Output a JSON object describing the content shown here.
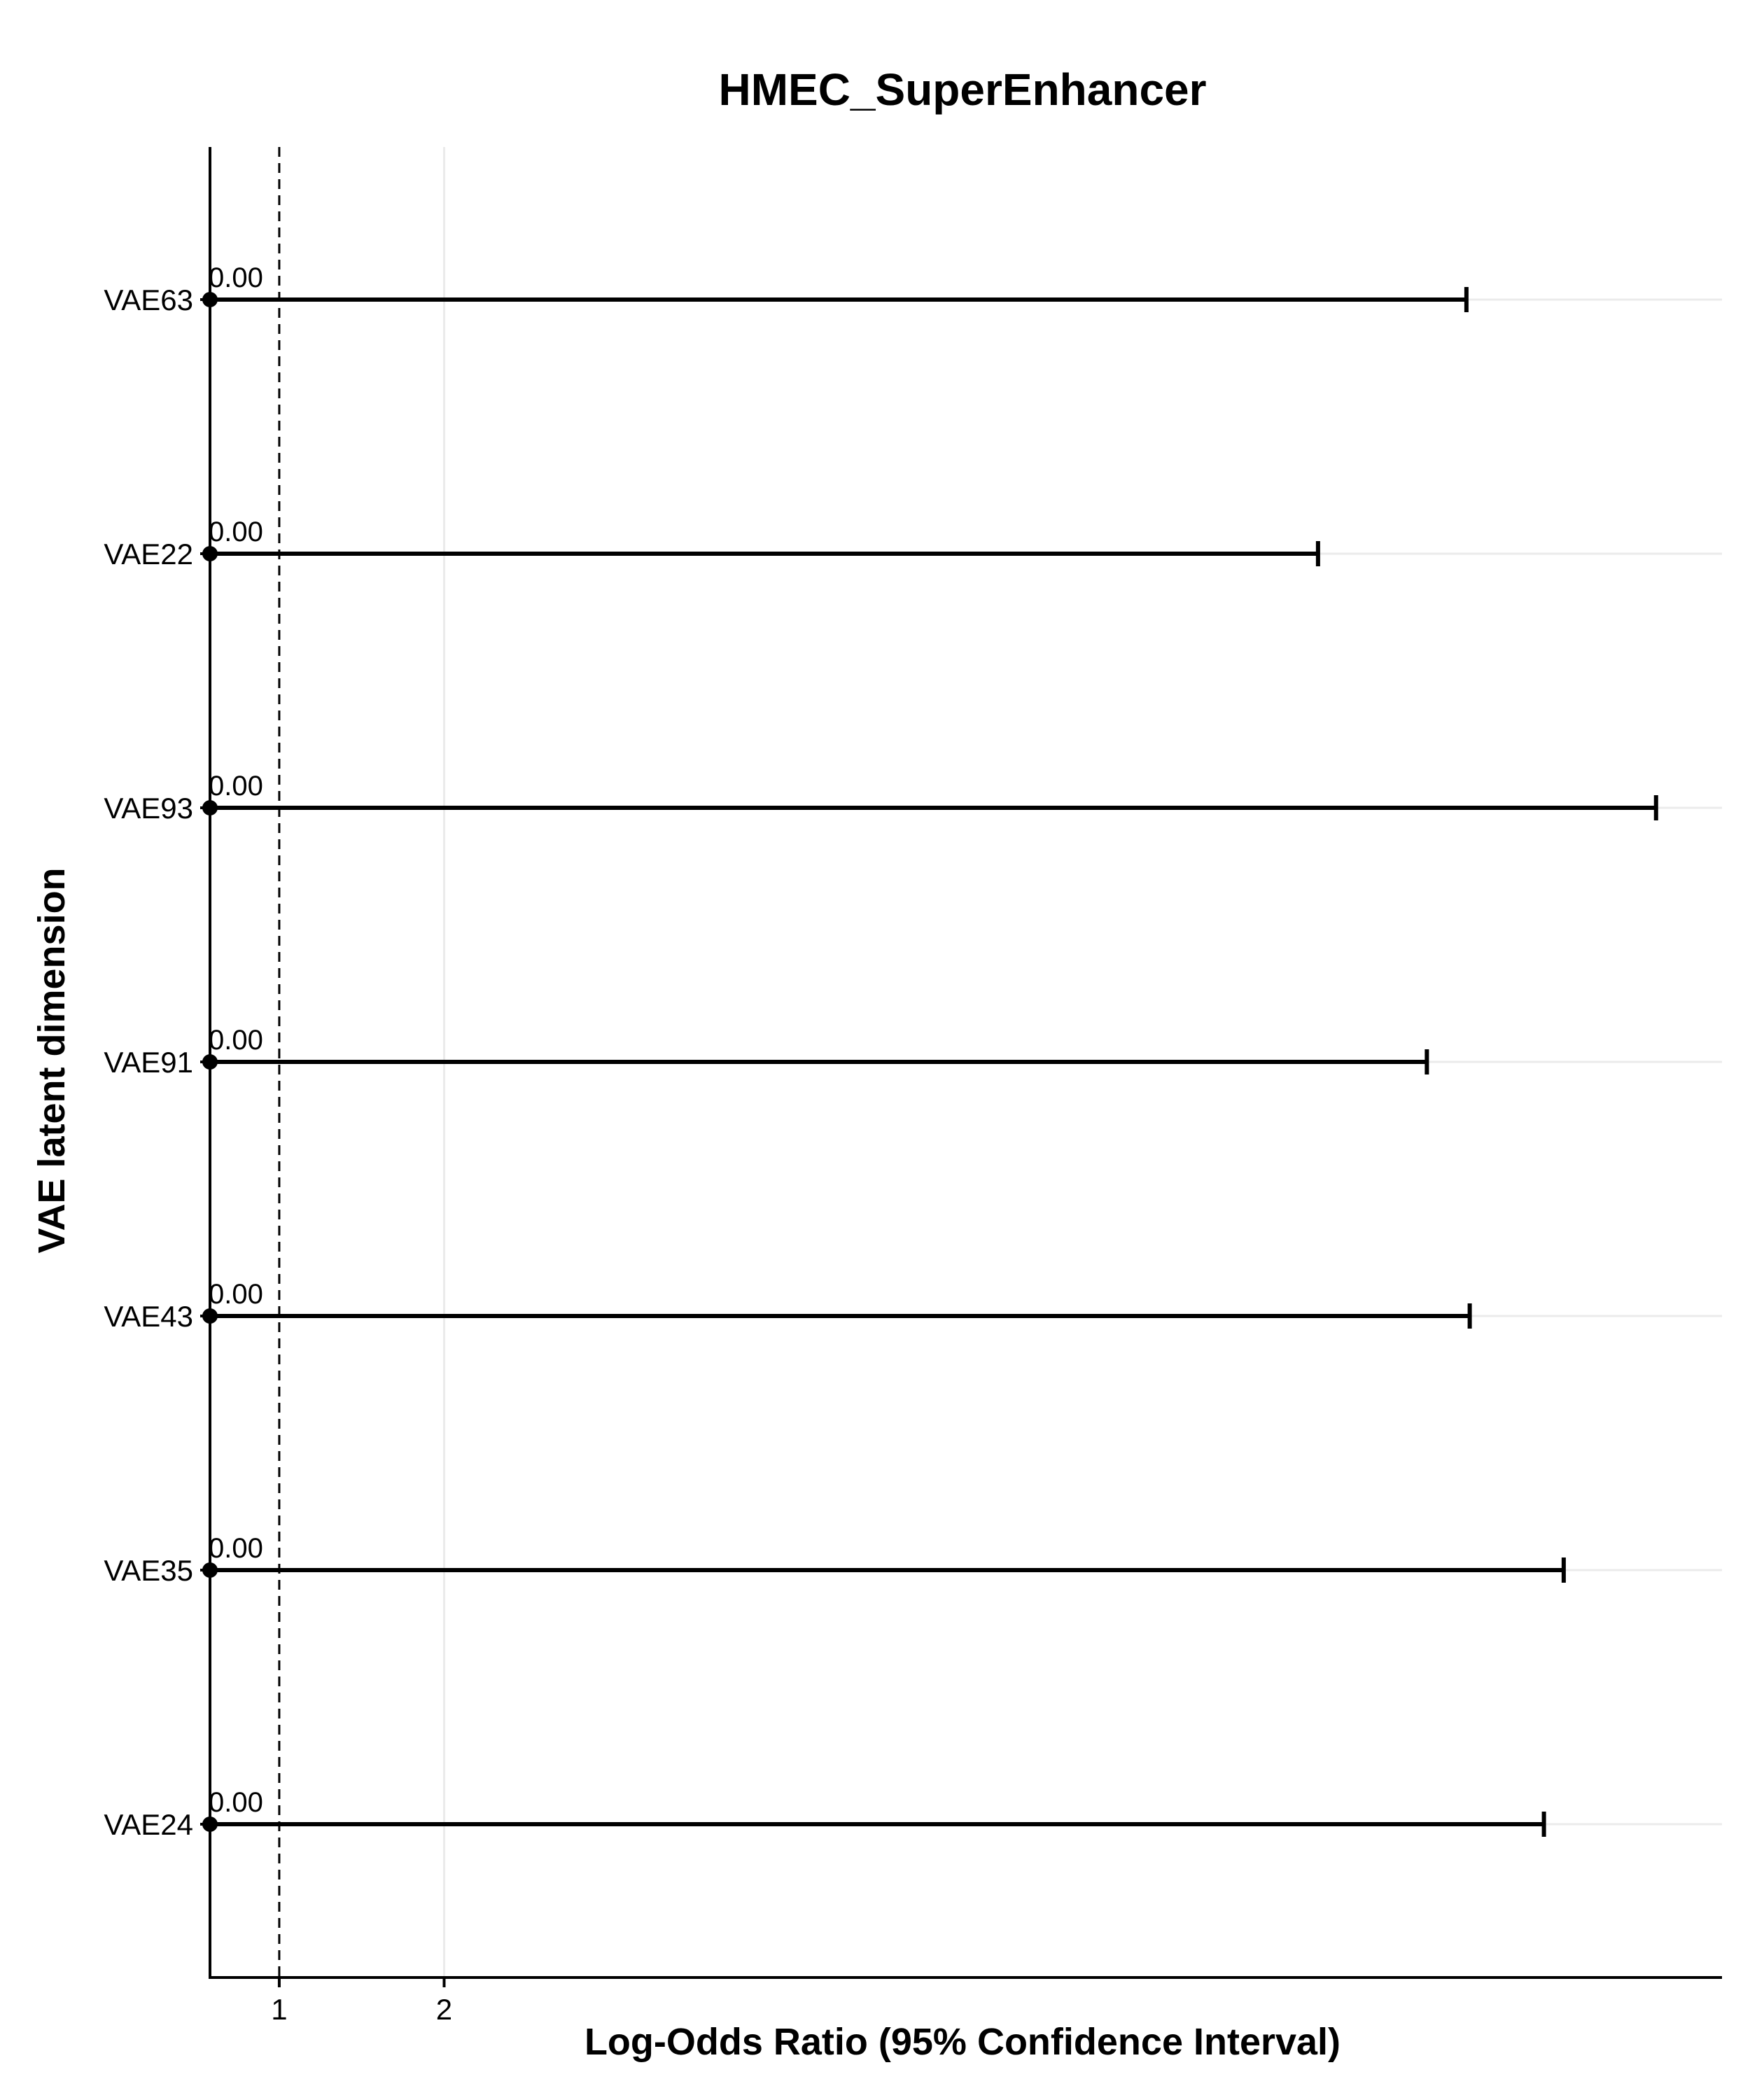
{
  "chart_data": {
    "type": "forest",
    "title": "HMEC_SuperEnhancer",
    "xlabel": "Log-Odds Ratio (95% Confidence Interval)",
    "ylabel": "VAE latent dimension",
    "x_ticks": [
      1,
      2
    ],
    "xlim": [
      0.58,
      9.75
    ],
    "reference_line": 1,
    "grid": "major",
    "categories": [
      "VAE63",
      "VAE22",
      "VAE93",
      "VAE91",
      "VAE43",
      "VAE35",
      "VAE24"
    ],
    "estimates": [
      0.0,
      0.0,
      0.0,
      0.0,
      0.0,
      0.0,
      0.0
    ],
    "lower": [
      0.0,
      0.0,
      0.0,
      0.0,
      0.0,
      0.0,
      0.0
    ],
    "upper": [
      8.2,
      7.3,
      9.35,
      7.96,
      8.22,
      8.79,
      8.67
    ],
    "point_labels": [
      "0.00",
      "0.00",
      "0.00",
      "0.00",
      "0.00",
      "0.00",
      "0.00"
    ]
  }
}
